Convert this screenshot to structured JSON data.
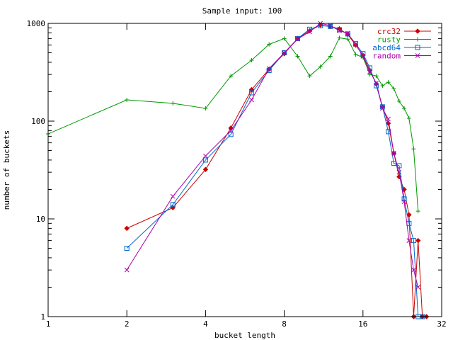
{
  "chart_data": {
    "type": "line",
    "title": "Sample input: 100",
    "xlabel": "bucket length",
    "ylabel": "number of buckets",
    "x_scale": "log2",
    "y_scale": "log10",
    "xlim": [
      1,
      32
    ],
    "ylim": [
      1,
      1000
    ],
    "x_ticks": [
      1,
      2,
      4,
      8,
      16,
      32
    ],
    "x_tick_labels": [
      "1",
      "2",
      "4",
      "8",
      "16",
      "32"
    ],
    "y_ticks": [
      1,
      10,
      100,
      1000
    ],
    "y_tick_labels": [
      "1",
      "10",
      "100",
      "1000"
    ],
    "grid": false,
    "legend_position": "top-right",
    "series": [
      {
        "name": "crc32",
        "color": "#cc0000",
        "marker": "diamond",
        "points": [
          [
            2,
            8
          ],
          [
            3,
            13
          ],
          [
            4,
            32
          ],
          [
            5,
            85
          ],
          [
            6,
            210
          ],
          [
            7,
            340
          ],
          [
            8,
            490
          ],
          [
            9,
            700
          ],
          [
            10,
            840
          ],
          [
            11,
            960
          ],
          [
            12,
            930
          ],
          [
            13,
            880
          ],
          [
            14,
            770
          ],
          [
            15,
            600
          ],
          [
            16,
            470
          ],
          [
            17,
            330
          ],
          [
            18,
            240
          ],
          [
            19,
            140
          ],
          [
            20,
            95
          ],
          [
            21,
            47
          ],
          [
            22,
            27
          ],
          [
            23,
            20
          ],
          [
            24,
            11
          ],
          [
            25,
            1
          ],
          [
            26,
            6
          ],
          [
            27,
            1
          ],
          [
            28,
            1
          ]
        ]
      },
      {
        "name": "rusty",
        "color": "#009900",
        "marker": "plus",
        "points": [
          [
            1,
            74
          ],
          [
            2,
            165
          ],
          [
            3,
            152
          ],
          [
            4,
            135
          ],
          [
            5,
            290
          ],
          [
            6,
            420
          ],
          [
            7,
            610
          ],
          [
            8,
            700
          ],
          [
            9,
            460
          ],
          [
            10,
            290
          ],
          [
            11,
            360
          ],
          [
            12,
            460
          ],
          [
            13,
            710
          ],
          [
            14,
            690
          ],
          [
            15,
            480
          ],
          [
            16,
            450
          ],
          [
            17,
            300
          ],
          [
            18,
            290
          ],
          [
            19,
            230
          ],
          [
            20,
            250
          ],
          [
            21,
            215
          ],
          [
            22,
            160
          ],
          [
            23,
            135
          ],
          [
            24,
            107
          ],
          [
            25,
            52
          ],
          [
            26,
            12
          ]
        ]
      },
      {
        "name": "abcd64",
        "color": "#0066cc",
        "marker": "square",
        "points": [
          [
            2,
            5
          ],
          [
            3,
            14
          ],
          [
            4,
            40
          ],
          [
            5,
            73
          ],
          [
            6,
            195
          ],
          [
            7,
            330
          ],
          [
            8,
            500
          ],
          [
            9,
            700
          ],
          [
            10,
            870
          ],
          [
            11,
            950
          ],
          [
            12,
            930
          ],
          [
            13,
            860
          ],
          [
            14,
            780
          ],
          [
            15,
            620
          ],
          [
            16,
            490
          ],
          [
            17,
            350
          ],
          [
            18,
            230
          ],
          [
            19,
            140
          ],
          [
            20,
            78
          ],
          [
            21,
            37
          ],
          [
            22,
            35
          ],
          [
            23,
            16
          ],
          [
            24,
            9
          ],
          [
            25,
            6
          ],
          [
            26,
            1
          ],
          [
            27,
            1
          ]
        ]
      },
      {
        "name": "random",
        "color": "#aa00aa",
        "marker": "x",
        "points": [
          [
            2,
            3
          ],
          [
            3,
            17
          ],
          [
            4,
            44
          ],
          [
            5,
            80
          ],
          [
            6,
            165
          ],
          [
            7,
            345
          ],
          [
            8,
            500
          ],
          [
            9,
            690
          ],
          [
            10,
            820
          ],
          [
            11,
            1000
          ],
          [
            12,
            950
          ],
          [
            13,
            840
          ],
          [
            14,
            790
          ],
          [
            15,
            610
          ],
          [
            16,
            460
          ],
          [
            17,
            320
          ],
          [
            18,
            245
          ],
          [
            19,
            135
          ],
          [
            20,
            105
          ],
          [
            21,
            47
          ],
          [
            22,
            30
          ],
          [
            23,
            15
          ],
          [
            24,
            6
          ],
          [
            25,
            3
          ],
          [
            26,
            2
          ]
        ]
      }
    ]
  }
}
